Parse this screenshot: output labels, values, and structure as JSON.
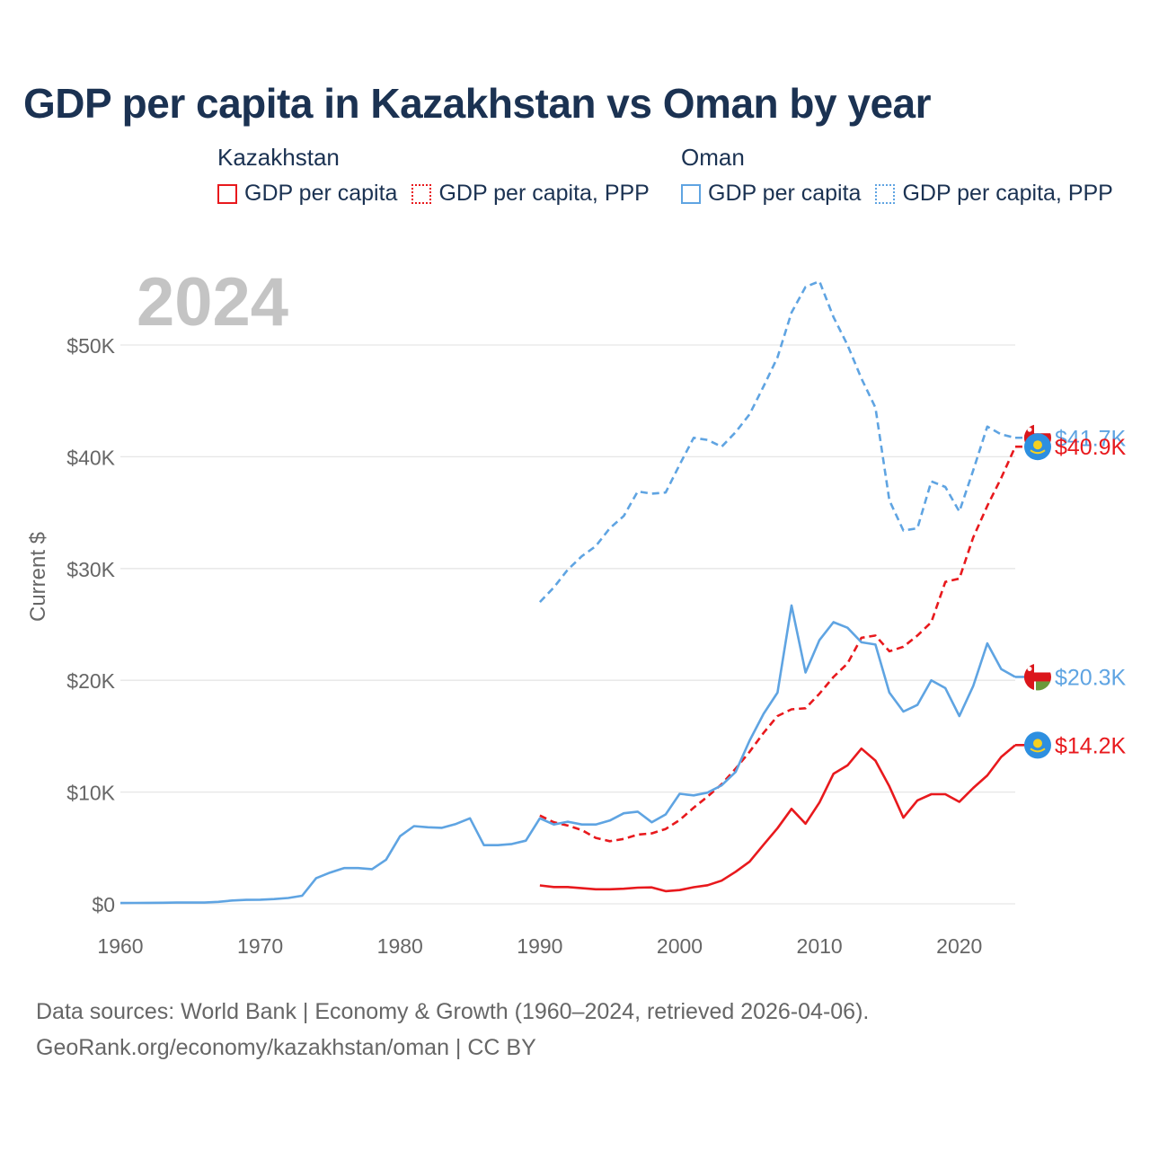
{
  "title": "GDP per capita in Kazakhstan vs Oman by year",
  "legend": {
    "kazakhstan": {
      "heading": "Kazakhstan",
      "gdp": "GDP per capita",
      "ppp": "GDP per capita, PPP"
    },
    "oman": {
      "heading": "Oman",
      "gdp": "GDP per capita",
      "ppp": "GDP per capita, PPP"
    }
  },
  "footer": {
    "line1": "Data sources: World Bank | Economy & Growth (1960–2024, retrieved 2026-04-06).",
    "line2": "GeoRank.org/economy/kazakhstan/oman | CC BY"
  },
  "colors": {
    "kazakhstan": "#e8191d",
    "oman": "#5fa4e2",
    "grid": "#e6e6e6",
    "year": "#c4c4c4",
    "axis_text": "#666666"
  },
  "chart_data": {
    "type": "line",
    "year_label": "2024",
    "ylabel": "Current $",
    "xlim": [
      1960,
      2024
    ],
    "ylim": [
      0,
      56000
    ],
    "x_ticks": [
      1960,
      1970,
      1980,
      1990,
      2000,
      2010,
      2020
    ],
    "x_tick_labels": [
      "1960",
      "1970",
      "1980",
      "1990",
      "2000",
      "2010",
      "2020"
    ],
    "y_ticks": [
      0,
      10000,
      20000,
      30000,
      40000,
      50000
    ],
    "y_tick_labels": [
      "$0",
      "$10K",
      "$20K",
      "$30K",
      "$40K",
      "$50K"
    ],
    "series": [
      {
        "name": "Oman GDP per capita, PPP",
        "country": "oman",
        "style": "dashed",
        "end_label": "$41.7K",
        "flag": "oman",
        "x": [
          1990,
          1991,
          1992,
          1993,
          1994,
          1995,
          1996,
          1997,
          1998,
          1999,
          2000,
          2001,
          2002,
          2003,
          2004,
          2005,
          2006,
          2007,
          2008,
          2009,
          2010,
          2011,
          2012,
          2013,
          2014,
          2015,
          2016,
          2017,
          2018,
          2019,
          2020,
          2021,
          2022,
          2023,
          2024
        ],
        "values": [
          27000,
          28300,
          29900,
          31100,
          32000,
          33600,
          34700,
          36900,
          36700,
          36800,
          39300,
          41700,
          41500,
          40900,
          42200,
          43800,
          46300,
          48900,
          52900,
          55200,
          55700,
          52500,
          50000,
          47000,
          44400,
          36100,
          33400,
          33600,
          37800,
          37300,
          35100,
          38800,
          42700,
          42000,
          41700
        ]
      },
      {
        "name": "Kazakhstan GDP per capita, PPP",
        "country": "kazakhstan",
        "style": "dashed",
        "end_label": "$40.9K",
        "flag": "kazakhstan",
        "x": [
          1990,
          1991,
          1992,
          1993,
          1994,
          1995,
          1996,
          1997,
          1998,
          1999,
          2000,
          2001,
          2002,
          2003,
          2004,
          2005,
          2006,
          2007,
          2008,
          2009,
          2010,
          2011,
          2012,
          2013,
          2014,
          2015,
          2016,
          2017,
          2018,
          2019,
          2020,
          2021,
          2022,
          2023,
          2024
        ],
        "values": [
          7900,
          7300,
          7000,
          6600,
          5900,
          5600,
          5800,
          6200,
          6300,
          6700,
          7500,
          8600,
          9600,
          10700,
          12100,
          13600,
          15300,
          16800,
          17400,
          17500,
          18800,
          20300,
          21500,
          23800,
          24000,
          22600,
          23000,
          24000,
          25200,
          28800,
          29100,
          32800,
          35600,
          38100,
          40900
        ]
      },
      {
        "name": "Oman GDP per capita",
        "country": "oman",
        "style": "solid",
        "end_label": "$20.3K",
        "flag": "oman",
        "x": [
          1960,
          1961,
          1962,
          1963,
          1964,
          1965,
          1966,
          1967,
          1968,
          1969,
          1970,
          1971,
          1972,
          1973,
          1974,
          1975,
          1976,
          1977,
          1978,
          1979,
          1980,
          1981,
          1982,
          1983,
          1984,
          1985,
          1986,
          1987,
          1988,
          1989,
          1990,
          1991,
          1992,
          1993,
          1994,
          1995,
          1996,
          1997,
          1998,
          1999,
          2000,
          2001,
          2002,
          2003,
          2004,
          2005,
          2006,
          2007,
          2008,
          2009,
          2010,
          2011,
          2012,
          2013,
          2014,
          2015,
          2016,
          2017,
          2018,
          2019,
          2020,
          2021,
          2022,
          2023,
          2024
        ],
        "values": [
          70,
          80,
          90,
          100,
          110,
          110,
          110,
          180,
          300,
          350,
          370,
          430,
          520,
          720,
          2300,
          2800,
          3200,
          3200,
          3100,
          3950,
          6050,
          6950,
          6850,
          6800,
          7150,
          7650,
          5250,
          5250,
          5350,
          5650,
          7650,
          7100,
          7350,
          7100,
          7100,
          7450,
          8100,
          8250,
          7300,
          8000,
          9850,
          9700,
          9950,
          10600,
          11800,
          14600,
          17000,
          18900,
          26700,
          20700,
          23600,
          25200,
          24700,
          23400,
          23200,
          18900,
          17200,
          17800,
          20000,
          19300,
          16800,
          19500,
          23300,
          21000,
          20300
        ]
      },
      {
        "name": "Kazakhstan GDP per capita",
        "country": "kazakhstan",
        "style": "solid",
        "end_label": "$14.2K",
        "flag": "kazakhstan",
        "x": [
          1990,
          1991,
          1992,
          1993,
          1994,
          1995,
          1996,
          1997,
          1998,
          1999,
          2000,
          2001,
          2002,
          2003,
          2004,
          2005,
          2006,
          2007,
          2008,
          2009,
          2010,
          2011,
          2012,
          2013,
          2014,
          2015,
          2016,
          2017,
          2018,
          2019,
          2020,
          2021,
          2022,
          2023,
          2024
        ],
        "values": [
          1650,
          1500,
          1500,
          1400,
          1300,
          1300,
          1350,
          1450,
          1470,
          1130,
          1230,
          1490,
          1660,
          2070,
          2870,
          3770,
          5290,
          6770,
          8500,
          7170,
          9070,
          11630,
          12390,
          13890,
          12810,
          10510,
          7710,
          9250,
          9810,
          9810,
          9120,
          10370,
          11490,
          13140,
          14200
        ]
      }
    ]
  }
}
